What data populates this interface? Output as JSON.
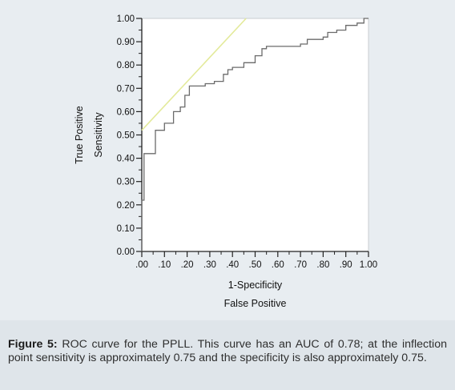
{
  "chart_data": {
    "type": "line",
    "xlabel": "1-Specificity",
    "xlabel_secondary": "False Positive",
    "ylabel": "Sensitivity",
    "ylabel_secondary": "True Positive",
    "xlim": [
      0,
      1
    ],
    "ylim": [
      0,
      1
    ],
    "x_ticks": [
      ".00",
      ".10",
      ".20",
      ".30",
      ".40",
      ".50",
      ".60",
      ".70",
      ".80",
      ".90",
      "1.00"
    ],
    "y_ticks": [
      "0.00",
      "0.10",
      "0.20",
      "0.30",
      "0.40",
      "0.50",
      "0.60",
      "0.70",
      "0.80",
      "0.90",
      "1.00"
    ],
    "grid": false,
    "series": [
      {
        "kind": "roc-step",
        "color": "#6b6b6b",
        "x": [
          0.0,
          0.0,
          0.01,
          0.01,
          0.06,
          0.06,
          0.1,
          0.1,
          0.14,
          0.14,
          0.17,
          0.17,
          0.19,
          0.19,
          0.21,
          0.21,
          0.28,
          0.28,
          0.32,
          0.32,
          0.36,
          0.36,
          0.38,
          0.38,
          0.4,
          0.4,
          0.45,
          0.45,
          0.5,
          0.5,
          0.53,
          0.53,
          0.55,
          0.55,
          0.7,
          0.7,
          0.73,
          0.73,
          0.8,
          0.8,
          0.82,
          0.82,
          0.86,
          0.86,
          0.9,
          0.9,
          0.95,
          0.95,
          0.98,
          0.98,
          1.0
        ],
        "y": [
          0.0,
          0.22,
          0.22,
          0.42,
          0.42,
          0.52,
          0.52,
          0.55,
          0.55,
          0.6,
          0.6,
          0.62,
          0.62,
          0.67,
          0.67,
          0.71,
          0.71,
          0.72,
          0.72,
          0.73,
          0.73,
          0.76,
          0.76,
          0.78,
          0.78,
          0.79,
          0.79,
          0.81,
          0.81,
          0.84,
          0.84,
          0.87,
          0.87,
          0.88,
          0.88,
          0.89,
          0.89,
          0.91,
          0.91,
          0.92,
          0.92,
          0.94,
          0.94,
          0.95,
          0.95,
          0.97,
          0.97,
          0.98,
          0.98,
          1.0,
          1.0
        ]
      },
      {
        "kind": "reference-line",
        "color": "#e3ea9a",
        "x": [
          0.0,
          0.46
        ],
        "y": [
          0.52,
          1.0
        ]
      }
    ]
  },
  "caption": {
    "label": "Figure 5:",
    "text": " ROC curve for the PPLL. This curve has an AUC of 0.78; at the inflection point sensitivity is approximately 0.75 and the specificity is also approximately 0.75."
  }
}
